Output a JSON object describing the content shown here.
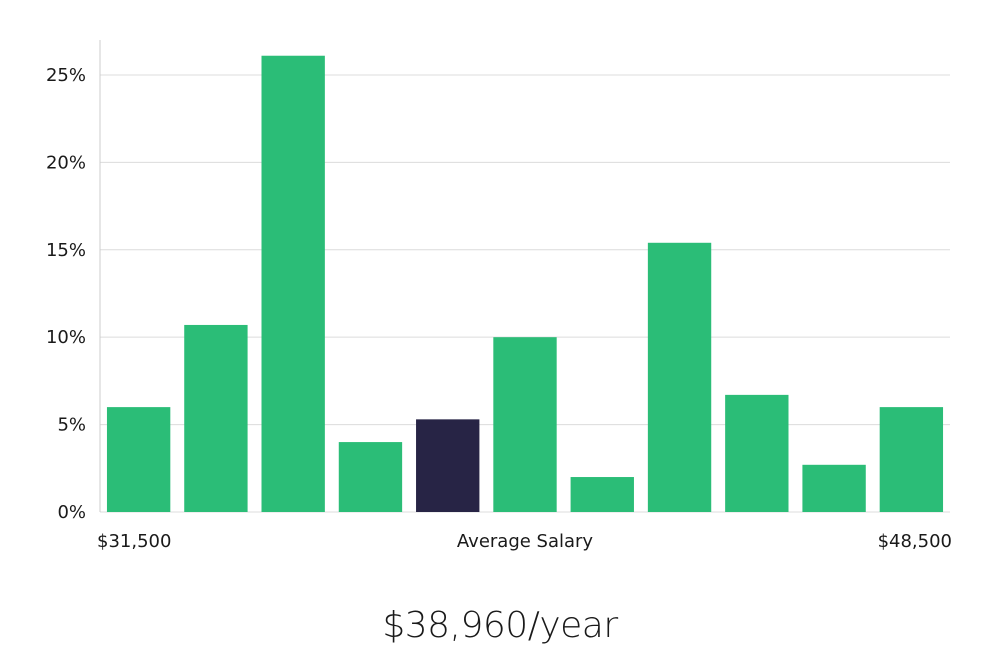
{
  "chart_data": {
    "type": "bar",
    "title": "",
    "xlabel": "Average Salary",
    "ylabel": "",
    "x_min_label": "$31,500",
    "x_max_label": "$48,500",
    "ylim": [
      0,
      27
    ],
    "yticks": [
      0,
      5,
      10,
      15,
      20,
      25
    ],
    "ytick_labels": [
      "0%",
      "5%",
      "10%",
      "15%",
      "20%",
      "25%"
    ],
    "values": [
      6.0,
      10.7,
      26.1,
      4.0,
      5.3,
      10.0,
      2.0,
      15.4,
      6.7,
      2.7,
      6.0
    ],
    "highlight_index": 4,
    "colors": {
      "bar": "#2bbd77",
      "highlight": "#272445",
      "grid": "#dcdcdc",
      "axis": "#cccccc"
    }
  },
  "summary": {
    "average_salary": "$38,960/year"
  }
}
